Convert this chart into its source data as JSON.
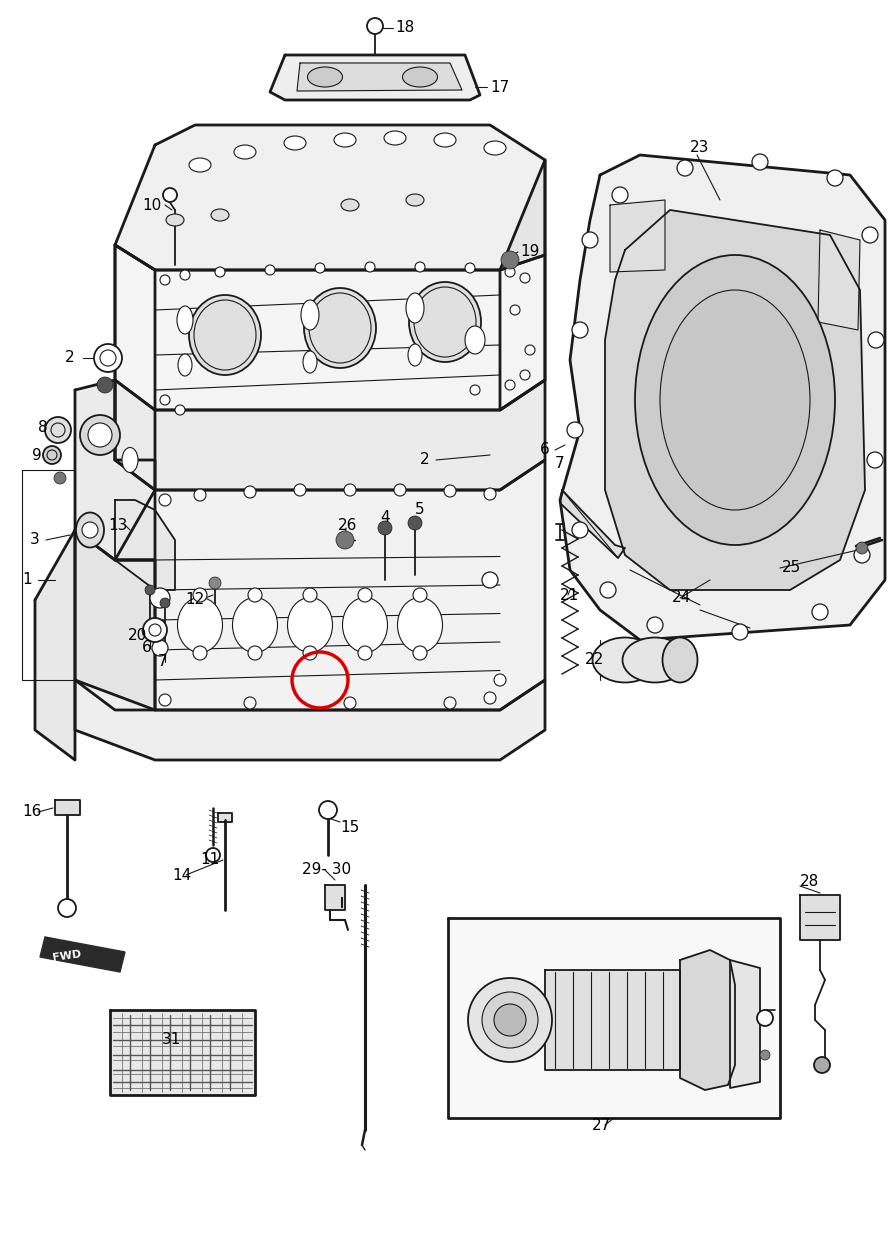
{
  "bg_color": "#ffffff",
  "line_color": "#1a1a1a",
  "red_circle_color": "#dd0000",
  "fig_width": 8.93,
  "fig_height": 12.52,
  "dpi": 100
}
